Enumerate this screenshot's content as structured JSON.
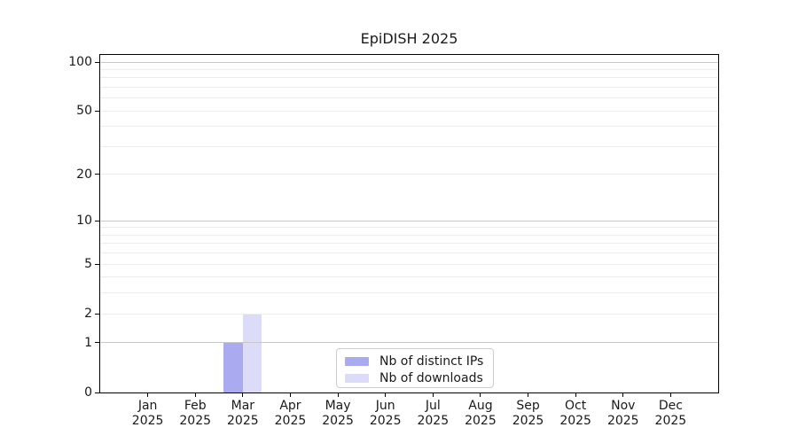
{
  "chart_data": {
    "type": "bar",
    "title": "EpiDISH 2025",
    "categories": [
      {
        "month": "Jan",
        "year": "2025"
      },
      {
        "month": "Feb",
        "year": "2025"
      },
      {
        "month": "Mar",
        "year": "2025"
      },
      {
        "month": "Apr",
        "year": "2025"
      },
      {
        "month": "May",
        "year": "2025"
      },
      {
        "month": "Jun",
        "year": "2025"
      },
      {
        "month": "Jul",
        "year": "2025"
      },
      {
        "month": "Aug",
        "year": "2025"
      },
      {
        "month": "Sep",
        "year": "2025"
      },
      {
        "month": "Oct",
        "year": "2025"
      },
      {
        "month": "Nov",
        "year": "2025"
      },
      {
        "month": "Dec",
        "year": "2025"
      }
    ],
    "series": [
      {
        "name": "Nb of distinct IPs",
        "color": "#aaaaf0",
        "values": [
          0,
          0,
          1,
          0,
          0,
          0,
          0,
          0,
          0,
          0,
          0,
          0
        ]
      },
      {
        "name": "Nb of downloads",
        "color": "#dcdcf8",
        "values": [
          0,
          0,
          2,
          0,
          0,
          0,
          0,
          0,
          0,
          0,
          0,
          0
        ]
      }
    ],
    "yaxis": {
      "scale": "log1p",
      "tick_values": [
        0,
        1,
        2,
        5,
        10,
        20,
        50,
        100
      ],
      "tick_labels": [
        "0",
        "1",
        "2",
        "5",
        "10",
        "20",
        "50",
        "100"
      ],
      "ylim": [
        0,
        110
      ],
      "gridline_major_values": [
        1,
        10,
        100
      ],
      "gridline_minor_values": [
        2,
        3,
        4,
        5,
        6,
        7,
        8,
        9,
        20,
        30,
        40,
        50,
        60,
        70,
        80,
        90
      ],
      "gridline_major_color": "#c8c8c8",
      "gridline_minor_color": "#ececec"
    },
    "legend": {
      "position": "lower center",
      "items": [
        {
          "label": "Nb of distinct IPs",
          "color": "#aaaaf0"
        },
        {
          "label": "Nb of downloads",
          "color": "#dcdcf8"
        }
      ]
    }
  }
}
